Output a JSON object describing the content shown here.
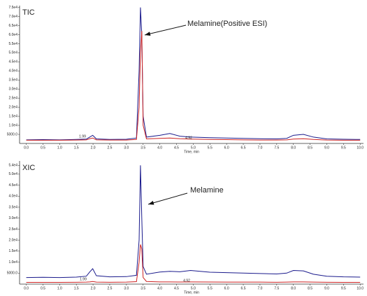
{
  "chart_data": [
    {
      "type": "line",
      "xlabel": "Time, min",
      "annotations": [
        "TIC",
        "Melamine(Positive ESI)",
        "1.99",
        "4.92"
      ],
      "x": [
        0,
        0.5,
        1,
        1.5,
        1.8,
        1.9,
        1.99,
        2.1,
        2.5,
        3.0,
        3.3,
        3.38,
        3.42,
        3.46,
        3.5,
        3.6,
        4.0,
        4.3,
        4.6,
        4.92,
        5.5,
        6,
        6.5,
        7,
        7.5,
        7.8,
        8.0,
        8.3,
        8.6,
        9,
        9.5,
        10
      ],
      "series": [
        {
          "color": "#1a1a8c",
          "values": [
            2000,
            2100,
            2000,
            2200,
            2400,
            3500,
            4500,
            2500,
            2200,
            2300,
            3000,
            40000,
            75000,
            60000,
            15000,
            3500,
            4500,
            5500,
            4000,
            3500,
            3200,
            3000,
            2800,
            2600,
            2500,
            2800,
            4500,
            5000,
            3500,
            2500,
            2300,
            2200
          ]
        },
        {
          "color": "#cc2222",
          "values": [
            1800,
            1800,
            1800,
            1900,
            2000,
            2600,
            3000,
            2000,
            1900,
            1900,
            2200,
            20000,
            50000,
            62000,
            10000,
            2500,
            2800,
            3000,
            2600,
            2400,
            2200,
            2100,
            2000,
            1900,
            1900,
            2000,
            2400,
            2600,
            2200,
            1900,
            1800,
            1800
          ]
        }
      ],
      "xlim": [
        -0.2,
        10.1
      ],
      "ylim": [
        0,
        76000
      ],
      "xticks": [
        {
          "value": 0,
          "label": "0.0"
        },
        {
          "value": 0.5,
          "label": "0.5"
        },
        {
          "value": 1,
          "label": "1.0"
        },
        {
          "value": 1.5,
          "label": "1.5"
        },
        {
          "value": 2,
          "label": "2.0"
        },
        {
          "value": 2.5,
          "label": "2.5"
        },
        {
          "value": 3,
          "label": "3.0"
        },
        {
          "value": 3.5,
          "label": "3.5"
        },
        {
          "value": 4,
          "label": "4.0"
        },
        {
          "value": 4.5,
          "label": "4.5"
        },
        {
          "value": 5,
          "label": "5.0"
        },
        {
          "value": 5.5,
          "label": "5.5"
        },
        {
          "value": 6,
          "label": "6.0"
        },
        {
          "value": 6.5,
          "label": "6.5"
        },
        {
          "value": 7,
          "label": "7.0"
        },
        {
          "value": 7.5,
          "label": "7.5"
        },
        {
          "value": 8,
          "label": "8.0"
        },
        {
          "value": 8.5,
          "label": "8.5"
        },
        {
          "value": 9,
          "label": "9.0"
        },
        {
          "value": 9.5,
          "label": "9.5"
        },
        {
          "value": 10,
          "label": "10.0"
        }
      ],
      "yticks": [
        {
          "value": 5000,
          "label": "5000.0"
        },
        {
          "value": 10000,
          "label": "1.0e4"
        },
        {
          "value": 15000,
          "label": "1.5e4"
        },
        {
          "value": 20000,
          "label": "2.0e4"
        },
        {
          "value": 25000,
          "label": "2.5e4"
        },
        {
          "value": 30000,
          "label": "3.0e4"
        },
        {
          "value": 35000,
          "label": "3.5e4"
        },
        {
          "value": 40000,
          "label": "4.0e4"
        },
        {
          "value": 45000,
          "label": "4.5e4"
        },
        {
          "value": 50000,
          "label": "5.0e4"
        },
        {
          "value": 55000,
          "label": "5.5e4"
        },
        {
          "value": 60000,
          "label": "6.0e4"
        },
        {
          "value": 65000,
          "label": "6.5e4"
        },
        {
          "value": 70000,
          "label": "7.0e4"
        },
        {
          "value": 75000,
          "label": "7.5e4"
        }
      ]
    },
    {
      "type": "line",
      "xlabel": "Time, min",
      "annotations": [
        "XIC",
        "Melamine",
        "1.99",
        "4.92"
      ],
      "x": [
        0,
        0.5,
        1,
        1.5,
        1.8,
        1.9,
        1.99,
        2.1,
        2.5,
        3.0,
        3.3,
        3.38,
        3.42,
        3.46,
        3.5,
        3.6,
        4.0,
        4.3,
        4.6,
        4.92,
        5.5,
        6,
        6.5,
        7,
        7.5,
        7.8,
        8.0,
        8.3,
        8.6,
        9,
        9.5,
        10
      ],
      "series": [
        {
          "color": "#1a1a8c",
          "values": [
            3000,
            3100,
            3000,
            3200,
            3600,
            5500,
            7000,
            3800,
            3300,
            3400,
            4000,
            20000,
            54000,
            30000,
            8000,
            4500,
            5500,
            5800,
            5600,
            6200,
            5400,
            5200,
            5000,
            4800,
            4600,
            5000,
            6200,
            6000,
            4500,
            3600,
            3300,
            3200
          ]
        },
        {
          "color": "#cc2222",
          "values": [
            800,
            800,
            800,
            850,
            900,
            1000,
            1200,
            900,
            850,
            900,
            1100,
            10000,
            18000,
            16000,
            3000,
            1200,
            1000,
            1000,
            950,
            1000,
            950,
            900,
            900,
            900,
            850,
            900,
            1000,
            1000,
            900,
            850,
            800,
            800
          ]
        }
      ],
      "xlim": [
        -0.2,
        10.1
      ],
      "ylim": [
        0,
        56000
      ],
      "xticks": [
        {
          "value": 0,
          "label": "0.0"
        },
        {
          "value": 0.5,
          "label": "0.5"
        },
        {
          "value": 1,
          "label": "1.0"
        },
        {
          "value": 1.5,
          "label": "1.5"
        },
        {
          "value": 2,
          "label": "2.0"
        },
        {
          "value": 2.5,
          "label": "2.5"
        },
        {
          "value": 3,
          "label": "3.0"
        },
        {
          "value": 3.5,
          "label": "3.5"
        },
        {
          "value": 4,
          "label": "4.0"
        },
        {
          "value": 4.5,
          "label": "4.5"
        },
        {
          "value": 5,
          "label": "5.0"
        },
        {
          "value": 5.5,
          "label": "5.5"
        },
        {
          "value": 6,
          "label": "6.0"
        },
        {
          "value": 6.5,
          "label": "6.5"
        },
        {
          "value": 7,
          "label": "7.0"
        },
        {
          "value": 7.5,
          "label": "7.5"
        },
        {
          "value": 8,
          "label": "8.0"
        },
        {
          "value": 8.5,
          "label": "8.5"
        },
        {
          "value": 9,
          "label": "9.0"
        },
        {
          "value": 9.5,
          "label": "9.5"
        },
        {
          "value": 10,
          "label": "10.0"
        }
      ],
      "yticks": [
        {
          "value": 5000,
          "label": "5000.0"
        },
        {
          "value": 10000,
          "label": "1.0e4"
        },
        {
          "value": 15000,
          "label": "1.5e4"
        },
        {
          "value": 20000,
          "label": "2.0e4"
        },
        {
          "value": 25000,
          "label": "2.5e4"
        },
        {
          "value": 30000,
          "label": "3.0e4"
        },
        {
          "value": 35000,
          "label": "3.5e4"
        },
        {
          "value": 40000,
          "label": "4.0e4"
        },
        {
          "value": 45000,
          "label": "4.5e4"
        },
        {
          "value": 50000,
          "label": "5.0e4"
        },
        {
          "value": 54000,
          "label": "5.4e4"
        }
      ]
    }
  ]
}
